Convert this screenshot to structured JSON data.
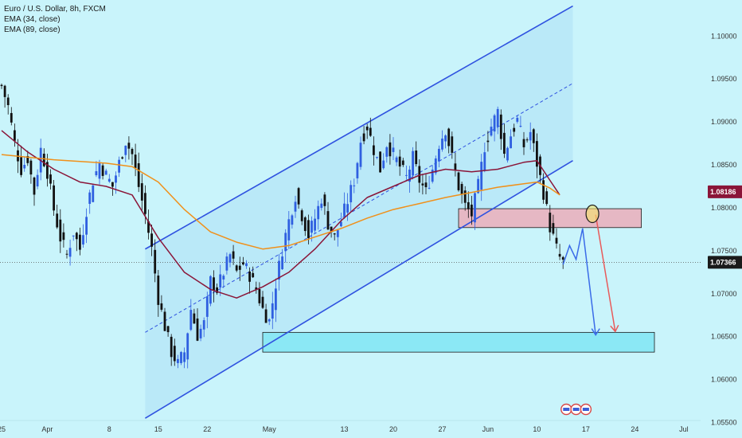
{
  "legend": {
    "title": "Euro / U.S. Dollar, 8h, FXCM",
    "ema1": "EMA (34, close)",
    "ema2": "EMA (89, close)"
  },
  "colors": {
    "background": "#c9f4fb",
    "up_candle": "#2f5fe0",
    "down_candle": "#111111",
    "ema34": "#8a1538",
    "ema89": "#f0901a",
    "channel": "#2f52e0",
    "channel_fill": "#b4e6f7",
    "resistance_zone": "#e6b8c4",
    "support_zone": "#8be8f5",
    "arrow_blue": "#3a6be8",
    "arrow_red": "#e85a5a",
    "price_marker": "#8a1538",
    "last_price_marker": "#1a1a1a"
  },
  "chart_data": {
    "type": "candlestick",
    "title": "Euro / U.S. Dollar, 8h, FXCM",
    "ylim": [
      1.0532,
      1.1042
    ],
    "y_ticks": [
      {
        "label": "1.10000",
        "value": 1.1
      },
      {
        "label": "1.09500",
        "value": 1.095
      },
      {
        "label": "1.09000",
        "value": 1.09
      },
      {
        "label": "1.08500",
        "value": 1.085
      },
      {
        "label": "1.08000",
        "value": 1.08
      },
      {
        "label": "1.07500",
        "value": 1.075
      },
      {
        "label": "1.07000",
        "value": 1.07
      },
      {
        "label": "1.06500",
        "value": 1.065
      },
      {
        "label": "1.06000",
        "value": 1.06
      },
      {
        "label": "1.05500",
        "value": 1.055
      }
    ],
    "x_ticks": [
      {
        "label": "25",
        "index": 0
      },
      {
        "label": "Apr",
        "index": 14
      },
      {
        "label": "8",
        "index": 33
      },
      {
        "label": "15",
        "index": 48
      },
      {
        "label": "22",
        "index": 63
      },
      {
        "label": "May",
        "index": 82
      },
      {
        "label": "13",
        "index": 105
      },
      {
        "label": "20",
        "index": 120
      },
      {
        "label": "27",
        "index": 135
      },
      {
        "label": "Jun",
        "index": 149
      },
      {
        "label": "10",
        "index": 164
      },
      {
        "label": "17",
        "index": 179
      },
      {
        "label": "24",
        "index": 194
      },
      {
        "label": "Jul",
        "index": 209
      }
    ],
    "price_markers": [
      {
        "label": "1.08186",
        "value": 1.08186,
        "style": "current"
      },
      {
        "label": "1.07366",
        "value": 1.07366,
        "style": "last"
      }
    ],
    "series": [
      {
        "name": "EMA (34, close)",
        "points": [
          [
            0,
            1.089
          ],
          [
            8,
            1.0865
          ],
          [
            16,
            1.0845
          ],
          [
            24,
            1.083
          ],
          [
            32,
            1.0825
          ],
          [
            40,
            1.0815
          ],
          [
            48,
            1.0765
          ],
          [
            56,
            1.0725
          ],
          [
            64,
            1.0705
          ],
          [
            72,
            1.0695
          ],
          [
            80,
            1.0708
          ],
          [
            88,
            1.0725
          ],
          [
            96,
            1.0752
          ],
          [
            104,
            1.0785
          ],
          [
            112,
            1.0812
          ],
          [
            120,
            1.0825
          ],
          [
            128,
            1.0838
          ],
          [
            136,
            1.0845
          ],
          [
            144,
            1.0842
          ],
          [
            152,
            1.0845
          ],
          [
            160,
            1.0853
          ],
          [
            164,
            1.0855
          ],
          [
            168,
            1.0832
          ],
          [
            171,
            1.0815
          ]
        ]
      },
      {
        "name": "EMA (89, close)",
        "points": [
          [
            0,
            1.0862
          ],
          [
            16,
            1.0856
          ],
          [
            32,
            1.0852
          ],
          [
            40,
            1.0848
          ],
          [
            48,
            1.083
          ],
          [
            56,
            1.0798
          ],
          [
            64,
            1.0772
          ],
          [
            72,
            1.076
          ],
          [
            80,
            1.0752
          ],
          [
            88,
            1.0756
          ],
          [
            96,
            1.0766
          ],
          [
            104,
            1.0776
          ],
          [
            112,
            1.0788
          ],
          [
            120,
            1.0798
          ],
          [
            128,
            1.0805
          ],
          [
            136,
            1.0812
          ],
          [
            144,
            1.0818
          ],
          [
            152,
            1.0824
          ],
          [
            160,
            1.0828
          ],
          [
            164,
            1.083
          ],
          [
            168,
            1.0823
          ],
          [
            171,
            1.0815
          ]
        ]
      }
    ],
    "channel": {
      "upper": [
        [
          44,
          1.0752
        ],
        [
          175,
          1.1035
        ]
      ],
      "lower": [
        [
          44,
          1.0555
        ],
        [
          175,
          1.0855
        ]
      ],
      "midline": [
        [
          44,
          1.0655
        ],
        [
          175,
          1.0945
        ]
      ]
    },
    "zones": [
      {
        "name": "resistance",
        "x": [
          140,
          196
        ],
        "y": [
          1.0777,
          1.0799
        ]
      },
      {
        "name": "support",
        "x": [
          80,
          200
        ],
        "y": [
          1.0632,
          1.0655
        ]
      }
    ],
    "projection": {
      "blue_path": [
        [
          172,
          1.0734
        ],
        [
          174,
          1.0756
        ],
        [
          176,
          1.074
        ],
        [
          178,
          1.0776
        ],
        [
          182,
          1.0652
        ]
      ],
      "red_path": [
        [
          182,
          1.0792
        ],
        [
          188,
          1.0656
        ]
      ],
      "circle_at": [
        181,
        1.0793
      ]
    },
    "events": [
      {
        "index": 173
      },
      {
        "index": 176
      },
      {
        "index": 179
      }
    ],
    "candles_generated_from_keypoints": [
      [
        0,
        1.0942
      ],
      [
        2,
        1.0918
      ],
      [
        4,
        1.0875
      ],
      [
        6,
        1.0845
      ],
      [
        8,
        1.0858
      ],
      [
        10,
        1.0818
      ],
      [
        12,
        1.0868
      ],
      [
        14,
        1.0842
      ],
      [
        16,
        1.0798
      ],
      [
        18,
        1.0765
      ],
      [
        20,
        1.0745
      ],
      [
        22,
        1.0772
      ],
      [
        24,
        1.0752
      ],
      [
        26,
        1.0798
      ],
      [
        28,
        1.0832
      ],
      [
        30,
        1.0852
      ],
      [
        32,
        1.0838
      ],
      [
        34,
        1.0825
      ],
      [
        36,
        1.0852
      ],
      [
        38,
        1.0878
      ],
      [
        40,
        1.0862
      ],
      [
        42,
        1.0825
      ],
      [
        44,
        1.0792
      ],
      [
        46,
        1.0752
      ],
      [
        48,
        1.0695
      ],
      [
        50,
        1.0662
      ],
      [
        52,
        1.0632
      ],
      [
        54,
        1.0618
      ],
      [
        56,
        1.0632
      ],
      [
        58,
        1.0682
      ],
      [
        60,
        1.0652
      ],
      [
        62,
        1.0665
      ],
      [
        64,
        1.0715
      ],
      [
        66,
        1.0705
      ],
      [
        68,
        1.0725
      ],
      [
        70,
        1.0745
      ],
      [
        72,
        1.0725
      ],
      [
        74,
        1.0735
      ],
      [
        76,
        1.0722
      ],
      [
        78,
        1.0705
      ],
      [
        80,
        1.0682
      ],
      [
        82,
        1.0668
      ],
      [
        84,
        1.0712
      ],
      [
        86,
        1.0752
      ],
      [
        88,
        1.0785
      ],
      [
        90,
        1.0815
      ],
      [
        92,
        1.0792
      ],
      [
        94,
        1.0768
      ],
      [
        96,
        1.0788
      ],
      [
        98,
        1.0812
      ],
      [
        100,
        1.0782
      ],
      [
        102,
        1.0765
      ],
      [
        104,
        1.0785
      ],
      [
        106,
        1.0808
      ],
      [
        108,
        1.0832
      ],
      [
        110,
        1.0878
      ],
      [
        112,
        1.0895
      ],
      [
        114,
        1.0868
      ],
      [
        116,
        1.0845
      ],
      [
        118,
        1.0875
      ],
      [
        120,
        1.0862
      ],
      [
        122,
        1.0848
      ],
      [
        124,
        1.0835
      ],
      [
        126,
        1.0858
      ],
      [
        128,
        1.0832
      ],
      [
        130,
        1.0818
      ],
      [
        132,
        1.0845
      ],
      [
        134,
        1.0875
      ],
      [
        136,
        1.0892
      ],
      [
        138,
        1.0858
      ],
      [
        140,
        1.0825
      ],
      [
        142,
        1.0802
      ],
      [
        144,
        1.0792
      ],
      [
        146,
        1.0825
      ],
      [
        148,
        1.0872
      ],
      [
        150,
        1.0895
      ],
      [
        152,
        1.0912
      ],
      [
        154,
        1.0862
      ],
      [
        156,
        1.0885
      ],
      [
        158,
        1.0902
      ],
      [
        160,
        1.0872
      ],
      [
        162,
        1.0888
      ],
      [
        164,
        1.0852
      ],
      [
        166,
        1.0818
      ],
      [
        167,
        1.0798
      ],
      [
        168,
        1.0778
      ],
      [
        170,
        1.0752
      ],
      [
        171,
        1.0742
      ],
      [
        172,
        1.0736
      ]
    ]
  }
}
